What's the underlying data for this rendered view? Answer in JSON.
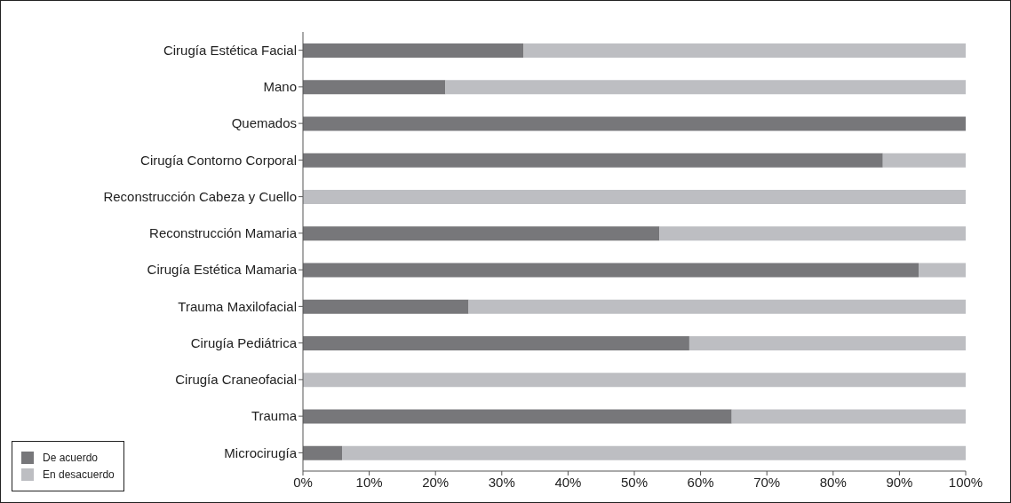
{
  "chart_data": {
    "type": "bar",
    "orientation": "horizontal",
    "stacked": true,
    "categories": [
      "Cirugía Estética Facial",
      "Mano",
      "Quemados",
      "Cirugía Contorno Corporal",
      "Reconstrucción Cabeza y Cuello",
      "Reconstrucción Mamaria",
      "Cirugía Estética Mamaria",
      "Trauma Maxilofacial",
      "Cirugía Pediátrica",
      "Cirugía Craneofacial",
      "Trauma",
      "Microcirugía"
    ],
    "series": [
      {
        "name": "De acuerdo",
        "color": "#77777a",
        "values": [
          33.3,
          21.5,
          100,
          87.5,
          0,
          53.8,
          92.9,
          25,
          58.3,
          0,
          64.7,
          5.9
        ]
      },
      {
        "name": "En desacuerdo",
        "color": "#bdbec2",
        "values": [
          66.7,
          78.5,
          0,
          12.5,
          100,
          46.2,
          7.1,
          75,
          41.7,
          100,
          35.3,
          94.1
        ]
      }
    ],
    "xlim": [
      0,
      100
    ],
    "xticks": [
      {
        "value": 0,
        "label": "0%"
      },
      {
        "value": 10,
        "label": "10%"
      },
      {
        "value": 20,
        "label": "20%"
      },
      {
        "value": 30,
        "label": "30%"
      },
      {
        "value": 40,
        "label": "40%"
      },
      {
        "value": 50,
        "label": "50%"
      },
      {
        "value": 60,
        "label": "60%"
      },
      {
        "value": 70,
        "label": "70%"
      },
      {
        "value": 80,
        "label": "80%"
      },
      {
        "value": 90,
        "label": "90%"
      },
      {
        "value": 100,
        "label": "100%"
      }
    ],
    "legend": "bottom left"
  }
}
